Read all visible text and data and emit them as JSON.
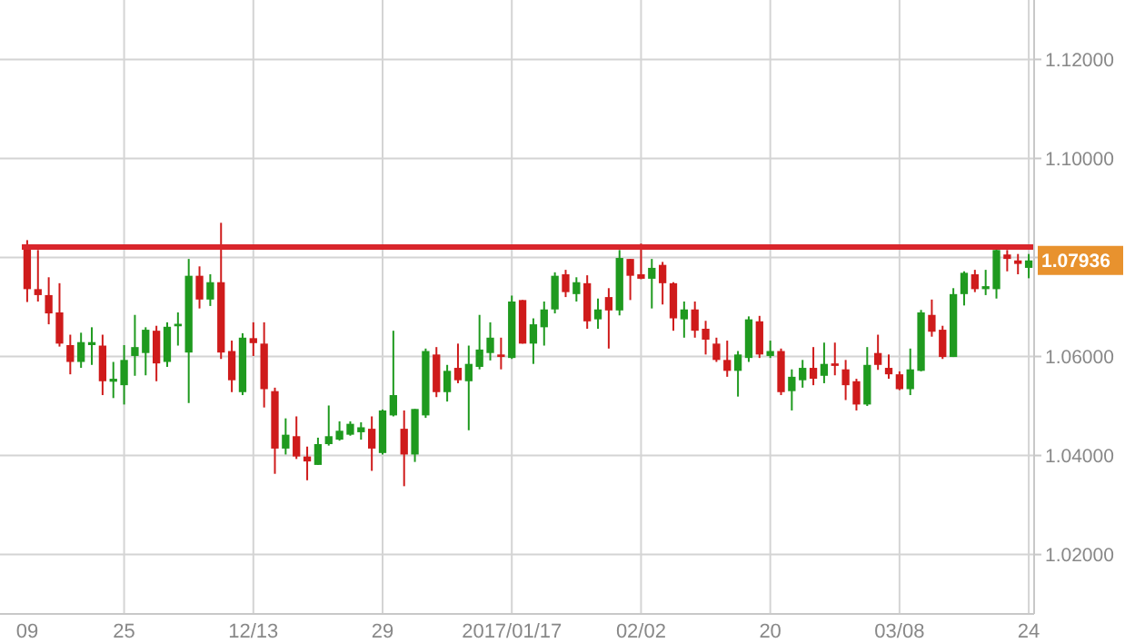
{
  "chart_data": {
    "type": "candlestick",
    "categories": [
      "09",
      null,
      null,
      null,
      null,
      null,
      null,
      null,
      null,
      "25",
      null,
      null,
      null,
      null,
      null,
      null,
      null,
      null,
      null,
      null,
      null,
      "12/13",
      null,
      null,
      null,
      null,
      null,
      null,
      null,
      null,
      null,
      null,
      null,
      "29",
      null,
      null,
      null,
      null,
      null,
      null,
      null,
      null,
      null,
      null,
      null,
      "2017/01/17",
      null,
      null,
      null,
      null,
      null,
      null,
      null,
      null,
      null,
      null,
      null,
      "02/02",
      null,
      null,
      null,
      null,
      null,
      null,
      null,
      null,
      null,
      null,
      null,
      "20",
      null,
      null,
      null,
      null,
      null,
      null,
      null,
      null,
      null,
      null,
      null,
      "03/08",
      null,
      null,
      null,
      null,
      null,
      null,
      null,
      null,
      null,
      null,
      null,
      "24"
    ],
    "ohlc": [
      [
        1.082,
        1.0835,
        1.071,
        1.0736
      ],
      [
        1.0736,
        1.0815,
        1.0711,
        1.0724
      ],
      [
        1.0724,
        1.076,
        1.0665,
        1.0687
      ],
      [
        1.0689,
        1.0748,
        1.062,
        1.0626
      ],
      [
        1.0623,
        1.0644,
        1.0564,
        1.0589
      ],
      [
        1.0589,
        1.0648,
        1.0577,
        1.0629
      ],
      [
        1.0623,
        1.0659,
        1.0583,
        1.0629
      ],
      [
        1.0622,
        1.0644,
        1.0522,
        1.055
      ],
      [
        1.0549,
        1.0589,
        1.0516,
        1.0555
      ],
      [
        1.0542,
        1.0623,
        1.0503,
        1.0593
      ],
      [
        1.0601,
        1.0684,
        1.0561,
        1.0619
      ],
      [
        1.0607,
        1.0659,
        1.0562,
        1.0654
      ],
      [
        1.0652,
        1.0662,
        1.055,
        1.0586
      ],
      [
        1.0589,
        1.0669,
        1.0579,
        1.066
      ],
      [
        1.0661,
        1.0689,
        1.0622,
        1.0666
      ],
      [
        1.0608,
        1.0797,
        1.0506,
        1.0763
      ],
      [
        1.0763,
        1.0782,
        1.0697,
        1.0715
      ],
      [
        1.0715,
        1.0766,
        1.0702,
        1.075
      ],
      [
        1.075,
        1.087,
        1.0595,
        1.0608
      ],
      [
        1.0611,
        1.0632,
        1.0528,
        1.0552
      ],
      [
        1.0528,
        1.0647,
        1.0522,
        1.0638
      ],
      [
        1.0637,
        1.0669,
        1.0601,
        1.0627
      ],
      [
        1.0626,
        1.0669,
        1.0497,
        1.0534
      ],
      [
        1.053,
        1.0537,
        1.0363,
        1.0414
      ],
      [
        1.0414,
        1.0475,
        1.0402,
        1.0442
      ],
      [
        1.0439,
        1.0479,
        1.0393,
        1.0398
      ],
      [
        1.0398,
        1.0418,
        1.035,
        1.0388
      ],
      [
        1.0381,
        1.0436,
        1.0381,
        1.0423
      ],
      [
        1.0423,
        1.0501,
        1.042,
        1.0439
      ],
      [
        1.0432,
        1.0469,
        1.043,
        1.045
      ],
      [
        1.0442,
        1.0469,
        1.044,
        1.0464
      ],
      [
        1.0447,
        1.0467,
        1.0432,
        1.0457
      ],
      [
        1.0454,
        1.0479,
        1.0369,
        1.0414
      ],
      [
        1.0405,
        1.0493,
        1.0402,
        1.0491
      ],
      [
        1.0481,
        1.0652,
        1.0479,
        1.0522
      ],
      [
        1.0454,
        1.0491,
        1.0338,
        1.0402
      ],
      [
        1.0402,
        1.0494,
        1.0387,
        1.0494
      ],
      [
        1.0481,
        1.0616,
        1.0476,
        1.0611
      ],
      [
        1.0604,
        1.0619,
        1.0518,
        1.0528
      ],
      [
        1.0528,
        1.0583,
        1.0509,
        1.0571
      ],
      [
        1.0577,
        1.0626,
        1.0546,
        1.0552
      ],
      [
        1.055,
        1.0622,
        1.0451,
        1.0585
      ],
      [
        1.0579,
        1.0684,
        1.0574,
        1.0614
      ],
      [
        1.0607,
        1.0669,
        1.0592,
        1.0638
      ],
      [
        1.0604,
        1.0638,
        1.0574,
        1.0599
      ],
      [
        1.0597,
        1.0723,
        1.0595,
        1.0711
      ],
      [
        1.0714,
        1.0714,
        1.0626,
        1.0626
      ],
      [
        1.0626,
        1.0677,
        1.0585,
        1.0665
      ],
      [
        1.0659,
        1.0711,
        1.0622,
        1.0695
      ],
      [
        1.0695,
        1.077,
        1.0687,
        1.0763
      ],
      [
        1.0766,
        1.0775,
        1.072,
        1.073
      ],
      [
        1.0726,
        1.076,
        1.0711,
        1.075
      ],
      [
        1.0748,
        1.0764,
        1.0656,
        1.0671
      ],
      [
        1.0675,
        1.0717,
        1.0656,
        1.0695
      ],
      [
        1.072,
        1.0738,
        1.0616,
        1.0693
      ],
      [
        1.0693,
        1.0815,
        1.0683,
        1.0799
      ],
      [
        1.0797,
        1.0797,
        1.0714,
        1.0763
      ],
      [
        1.0766,
        1.0828,
        1.0756,
        1.0757
      ],
      [
        1.0757,
        1.0797,
        1.0697,
        1.0779
      ],
      [
        1.0785,
        1.0791,
        1.0705,
        1.0748
      ],
      [
        1.0748,
        1.075,
        1.0652,
        1.0677
      ],
      [
        1.0675,
        1.0711,
        1.0638,
        1.0695
      ],
      [
        1.0695,
        1.0711,
        1.0638,
        1.0652
      ],
      [
        1.0656,
        1.0672,
        1.0604,
        1.0634
      ],
      [
        1.0626,
        1.0638,
        1.0589,
        1.0593
      ],
      [
        1.0593,
        1.0632,
        1.0559,
        1.0571
      ],
      [
        1.0571,
        1.0611,
        1.0519,
        1.0604
      ],
      [
        1.0597,
        1.0681,
        1.0589,
        1.0675
      ],
      [
        1.0671,
        1.0682,
        1.0597,
        1.0604
      ],
      [
        1.0601,
        1.0632,
        1.0597,
        1.0611
      ],
      [
        1.0611,
        1.0616,
        1.0522,
        1.0528
      ],
      [
        1.053,
        1.0574,
        1.0491,
        1.0559
      ],
      [
        1.0552,
        1.0593,
        1.0537,
        1.0577
      ],
      [
        1.0577,
        1.0619,
        1.0542,
        1.0555
      ],
      [
        1.0561,
        1.0628,
        1.0546,
        1.0585
      ],
      [
        1.0586,
        1.0628,
        1.0562,
        1.0581
      ],
      [
        1.0574,
        1.0593,
        1.0512,
        1.0542
      ],
      [
        1.055,
        1.0555,
        1.0491,
        1.0503
      ],
      [
        1.0503,
        1.0619,
        1.05,
        1.0583
      ],
      [
        1.0607,
        1.0644,
        1.0573,
        1.0583
      ],
      [
        1.0577,
        1.0604,
        1.0555,
        1.0564
      ],
      [
        1.0564,
        1.057,
        1.0532,
        1.0534
      ],
      [
        1.0534,
        1.0616,
        1.0522,
        1.0574
      ],
      [
        1.0571,
        1.0694,
        1.057,
        1.0689
      ],
      [
        1.0684,
        1.0715,
        1.064,
        1.065
      ],
      [
        1.0654,
        1.0662,
        1.0595,
        1.0599
      ],
      [
        1.0599,
        1.0738,
        1.0599,
        1.0726
      ],
      [
        1.0726,
        1.0772,
        1.0703,
        1.0769
      ],
      [
        1.0766,
        1.0775,
        1.073,
        1.0736
      ],
      [
        1.0736,
        1.0775,
        1.0724,
        1.0742
      ],
      [
        1.0736,
        1.0821,
        1.0717,
        1.0815
      ],
      [
        1.0806,
        1.0815,
        1.0772,
        1.0797
      ],
      [
        1.0794,
        1.0807,
        1.0766,
        1.0787
      ],
      [
        1.0779,
        1.0807,
        1.0758,
        1.0794
      ]
    ],
    "ylim": [
      1.008,
      1.132
    ],
    "yticks": [
      {
        "value": 1.02,
        "label": "1.02000"
      },
      {
        "value": 1.04,
        "label": "1.04000"
      },
      {
        "value": 1.06,
        "label": "1.06000"
      },
      {
        "value": 1.08,
        "label": null
      },
      {
        "value": 1.1,
        "label": "1.10000"
      },
      {
        "value": 1.12,
        "label": "1.12000"
      }
    ],
    "grid": true,
    "ref_lines": [
      {
        "axis": "y",
        "value": 1.0821,
        "color": "#d9262c"
      }
    ],
    "annotations": [
      "1.07936"
    ]
  }
}
